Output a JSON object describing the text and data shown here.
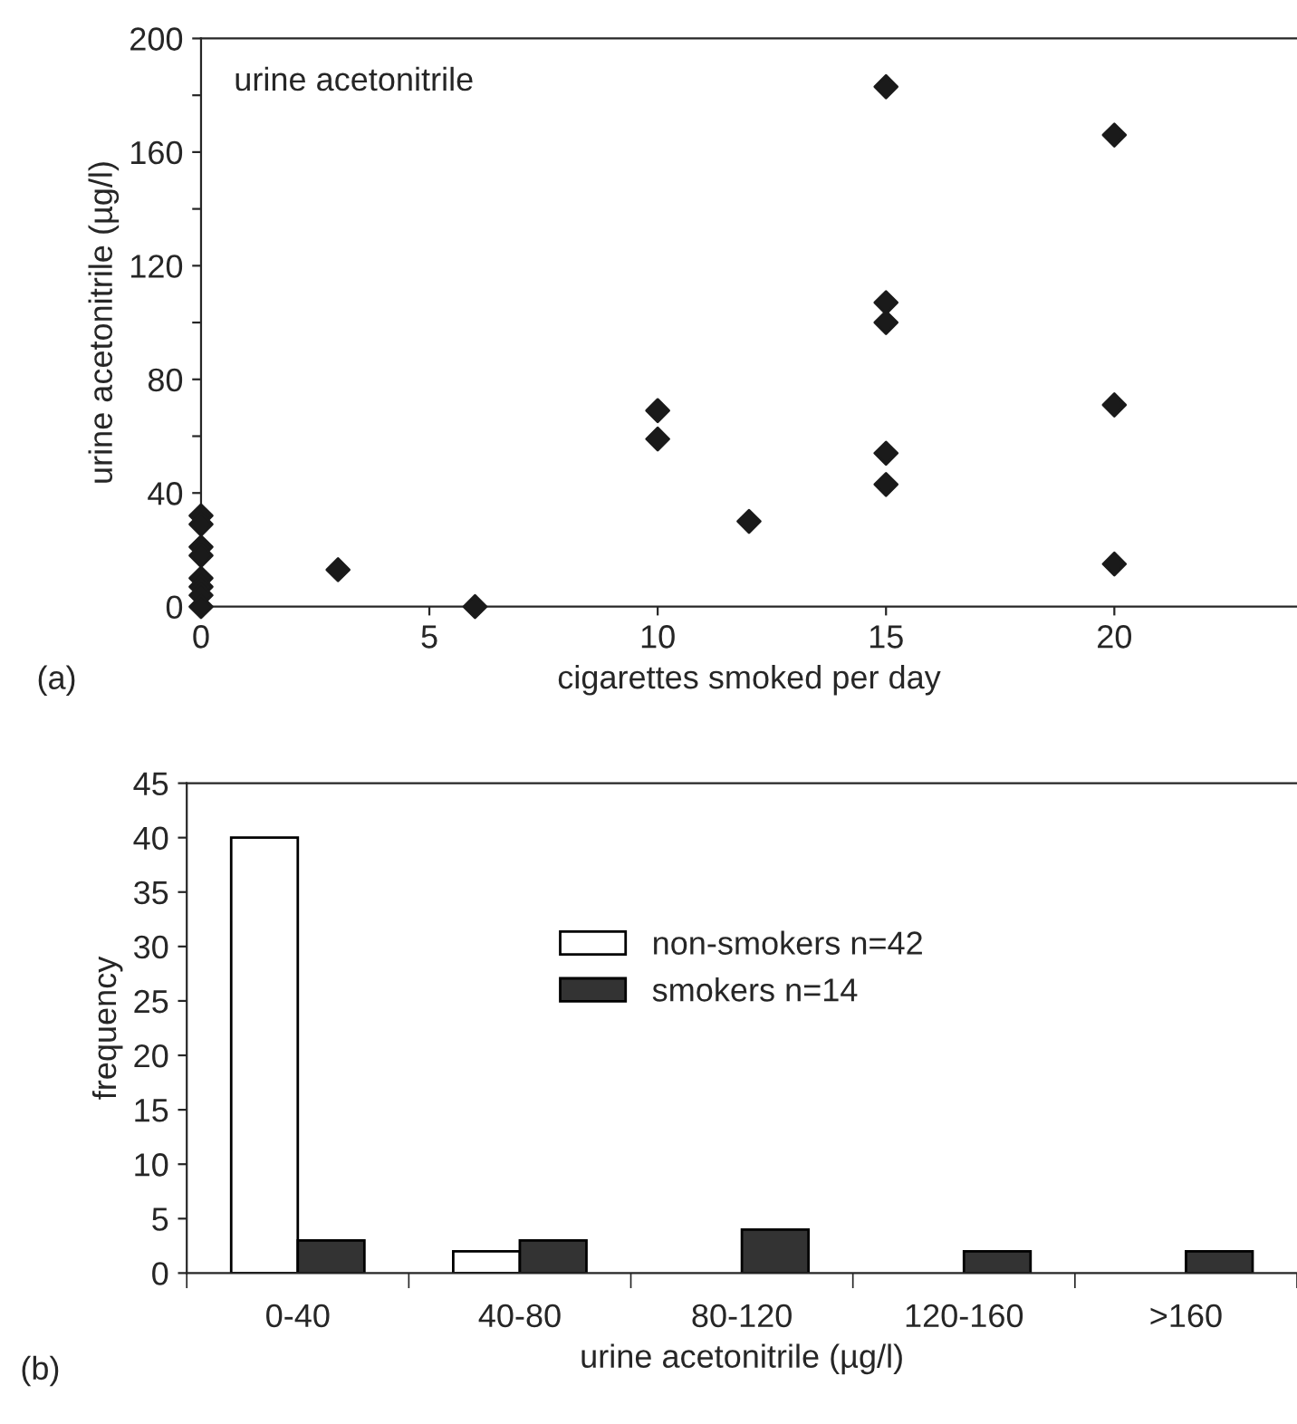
{
  "chart_data": [
    {
      "type": "scatter",
      "title": "urine acetonitrile",
      "xlabel": "cigarettes smoked per day",
      "ylabel": "urine acetonitrile (µg/l)",
      "annotations": [
        "(a)"
      ],
      "series": [
        {
          "color": "#1a1a1a",
          "x": [
            0,
            0,
            0,
            0,
            0,
            0,
            0,
            0,
            3,
            6,
            10,
            10,
            12,
            15,
            15,
            15,
            15,
            15,
            20,
            20,
            20
          ],
          "values": [
            32,
            29,
            21,
            18,
            10,
            7,
            4,
            0,
            13,
            0,
            69,
            59,
            30,
            183,
            107,
            100,
            54,
            43,
            166,
            71,
            15
          ]
        }
      ],
      "marker": "diamond",
      "xlim": [
        0,
        24
      ],
      "ylim": [
        0,
        200
      ],
      "xticks": [
        0,
        5,
        10,
        15,
        20
      ],
      "yticks": [
        0,
        {
          "value": 20,
          "label": null
        },
        40,
        {
          "value": 60,
          "label": null
        },
        80,
        {
          "value": 100,
          "label": null
        },
        120,
        {
          "value": 140,
          "label": null
        },
        160,
        {
          "value": 180,
          "label": null
        },
        200
      ],
      "grid": false,
      "legend": false
    },
    {
      "type": "bar",
      "xlabel": "urine acetonitrile (µg/l)",
      "ylabel": "frequency",
      "annotations": [
        "(b)"
      ],
      "categories": [
        "0-40",
        "40-80",
        "80-120",
        "120-160",
        ">160"
      ],
      "series": [
        {
          "name": "non-smokers n=42",
          "color": "#ffffff",
          "values": [
            40,
            2,
            0,
            0,
            0
          ]
        },
        {
          "name": "smokers n=14",
          "color": "#333333",
          "values": [
            3,
            3,
            4,
            2,
            2
          ]
        }
      ],
      "ylim": [
        0,
        45
      ],
      "yticks": [
        0,
        5,
        10,
        15,
        20,
        25,
        30,
        35,
        40,
        45
      ],
      "grid": false,
      "legend": "center"
    }
  ]
}
